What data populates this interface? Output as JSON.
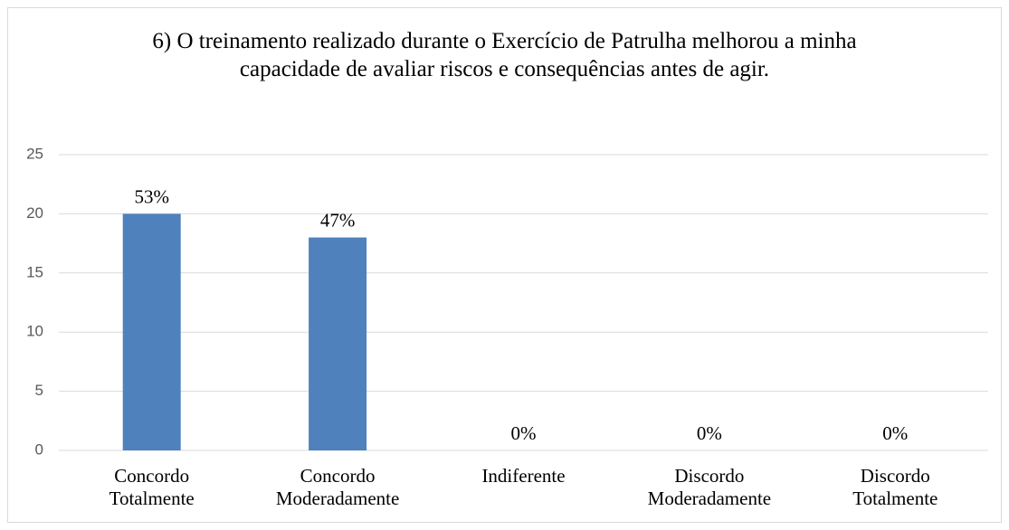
{
  "chart_data": {
    "type": "bar",
    "title": "6) O treinamento realizado durante o Exercício de Patrulha melhorou a minha capacidade de avaliar riscos e consequências antes de agir.",
    "categories": [
      "Concordo Totalmente",
      "Concordo Moderadamente",
      "Indiferente",
      "Discordo Moderadamente",
      "Discordo Totalmente"
    ],
    "values": [
      20,
      18,
      0,
      0,
      0
    ],
    "value_labels": [
      "53%",
      "47%",
      "0%",
      "0%",
      "0%"
    ],
    "color": "#4f81bd",
    "ylim": [
      0,
      25
    ],
    "yticks": [
      0,
      5,
      10,
      15,
      20,
      25
    ],
    "grid": true
  }
}
